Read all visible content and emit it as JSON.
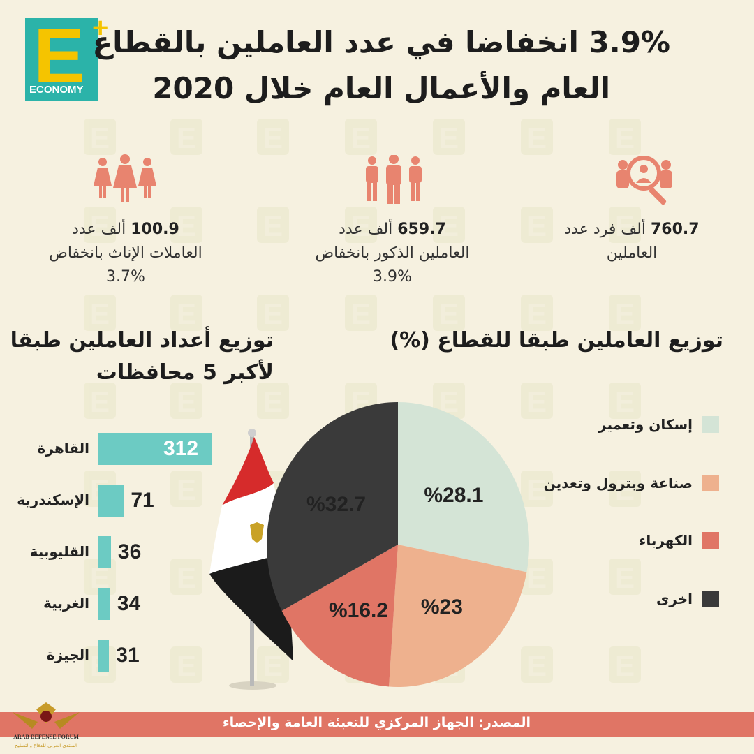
{
  "logo": {
    "letter": "E",
    "plus": "+",
    "caption": "ECONOMY"
  },
  "title": {
    "line1": "3.9% انخفاضا في عدد العاملين بالقطاع",
    "line2": "العام والأعمال العام خلال 2020"
  },
  "stats": [
    {
      "value": "760.7",
      "line1": "ألف فرد عدد",
      "line2": "العاملين",
      "line3": "",
      "icon": "magnifier-people-icon"
    },
    {
      "value": "659.7",
      "line1": "ألف عدد",
      "line2": "العاملين الذكور بانخفاض",
      "line3": "3.9%",
      "icon": "men-group-icon"
    },
    {
      "value": "100.9",
      "line1": "ألف عدد",
      "line2": "العاملات الإناث بانخفاض",
      "line3": "3.7%",
      "icon": "women-group-icon"
    }
  ],
  "sections": {
    "sector_title": "توزيع العاملين طبقا للقطاع (%)",
    "gov_title_1": "توزيع أعداد العاملين طبقا",
    "gov_title_2": "لأكبر 5 محافظات"
  },
  "colors": {
    "teal": "#6ccbc3",
    "housing": "#d4e4d6",
    "industry": "#eeb18e",
    "electricity": "#e07565",
    "other": "#3a3a3a"
  },
  "chart_data": [
    {
      "type": "bar",
      "orientation": "horizontal",
      "title": "توزيع أعداد العاملين طبقا لأكبر 5 محافظات",
      "categories": [
        "القاهرة",
        "الإسكندرية",
        "القليوبية",
        "الغربية",
        "الجيزة"
      ],
      "values": [
        312,
        71,
        36,
        34,
        31
      ]
    },
    {
      "type": "pie",
      "title": "توزيع العاملين طبقا للقطاع (%)",
      "slices": [
        {
          "label": "إسكان وتعمير",
          "value": 28.1,
          "text": "%28.1",
          "color": "#d4e4d6"
        },
        {
          "label": "صناعة وبترول وتعدين",
          "value": 23,
          "text": "%23",
          "color": "#eeb18e"
        },
        {
          "label": "الكهرباء",
          "value": 16.2,
          "text": "%16.2",
          "color": "#e07565"
        },
        {
          "label": "اخرى",
          "value": 32.7,
          "text": "%32.7",
          "color": "#3a3a3a"
        }
      ],
      "legend": "right"
    }
  ],
  "footer": {
    "source": "المصدر: الجهاز المركزي للتعبئة العامة والإحصاء"
  },
  "badge": {
    "line1": "ARAB DEFENSE FORUM",
    "line2": "المنتدى العربي للدفاع والتسليح"
  }
}
